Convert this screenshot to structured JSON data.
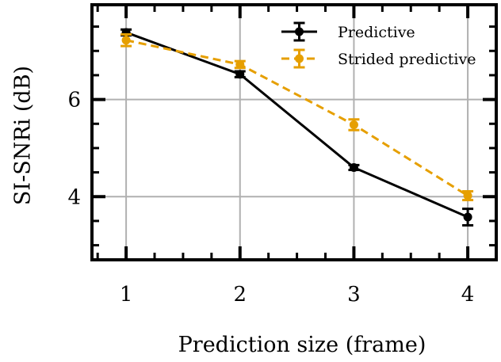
{
  "chart_data": {
    "type": "line",
    "xlabel": "Prediction size (frame)",
    "ylabel": "SI-SNRi (dB)",
    "xlim": [
      0.7,
      4.25
    ],
    "ylim": [
      2.7,
      7.95
    ],
    "x_ticks": [
      1,
      2,
      3,
      4
    ],
    "y_ticks": [
      4,
      6
    ],
    "x_tick_labels": [
      "1",
      "2",
      "3",
      "4"
    ],
    "y_tick_labels": [
      "4",
      "6"
    ],
    "grid": true,
    "legend_position": "top-right",
    "series": [
      {
        "name": "Predictive",
        "color": "#000000",
        "line_style": "solid",
        "marker": "circle",
        "x": [
          1,
          2,
          3,
          4
        ],
        "y": [
          7.38,
          6.52,
          4.6,
          3.58
        ],
        "err": [
          0.06,
          0.06,
          0.05,
          0.17
        ]
      },
      {
        "name": "Strided predictive",
        "color": "#e69f00",
        "line_style": "dashed",
        "marker": "circle",
        "x": [
          1,
          2,
          3,
          4
        ],
        "y": [
          7.22,
          6.72,
          5.48,
          4.02
        ],
        "err": [
          0.12,
          0.07,
          0.11,
          0.09
        ]
      }
    ]
  }
}
